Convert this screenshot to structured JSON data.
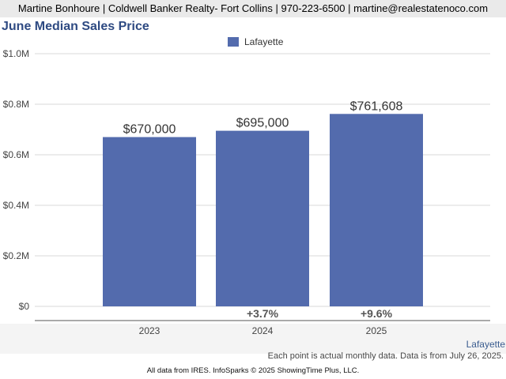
{
  "header": {
    "contact": "Martine Bonhoure | Coldwell Banker Realty- Fort Collins | 970-223-6500 | martine@realestatenoco.com"
  },
  "chart_data": {
    "type": "bar",
    "title": "June Median Sales Price",
    "categories": [
      "2023",
      "2024",
      "2025"
    ],
    "series": [
      {
        "name": "Lafayette",
        "values": [
          670000,
          695000,
          761608
        ],
        "color": "#536bad"
      }
    ],
    "data_labels": [
      "$670,000",
      "$695,000",
      "$761,608"
    ],
    "change_labels": [
      "",
      "+3.7%",
      "+9.6%"
    ],
    "ylim": [
      0,
      1000000
    ],
    "yticks": [
      {
        "value": 0,
        "label": "$0"
      },
      {
        "value": 200000,
        "label": "$0.2M"
      },
      {
        "value": 400000,
        "label": "$0.4M"
      },
      {
        "value": 600000,
        "label": "$0.6M"
      },
      {
        "value": 800000,
        "label": "$0.8M"
      },
      {
        "value": 1000000,
        "label": "$1.0M"
      }
    ],
    "grid": true,
    "legend": "top-center",
    "xlabel": "",
    "ylabel": ""
  },
  "footer": {
    "series_label": "Lafayette",
    "note": "Each point is actual monthly data. Data is from July 26, 2025.",
    "credit": "All data from IRES. InfoSparks © 2025 ShowingTime Plus, LLC."
  }
}
